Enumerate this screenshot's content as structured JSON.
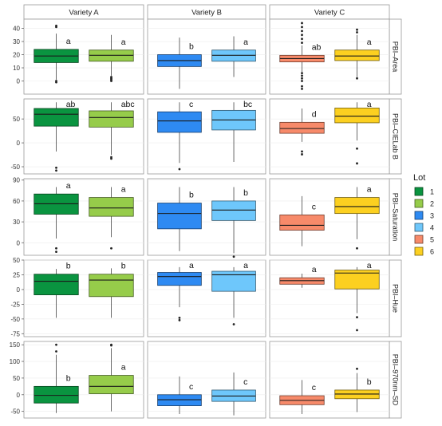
{
  "chart_data": {
    "type": "box",
    "facet_columns": [
      "Variety A",
      "Variety B",
      "Variety C"
    ],
    "legend": {
      "title": "Lot",
      "position": "right",
      "entries": [
        {
          "label": "1",
          "color": "#0a9440"
        },
        {
          "label": "2",
          "color": "#96cc4a"
        },
        {
          "label": "3",
          "color": "#2e8af2"
        },
        {
          "label": "4",
          "color": "#6ec7fb"
        },
        {
          "label": "5",
          "color": "#f78a6a"
        },
        {
          "label": "6",
          "color": "#fcd020"
        }
      ]
    },
    "panels": [
      {
        "row_label": "PBI–Area",
        "ylim": [
          -10,
          47
        ],
        "ticks": [
          0,
          10,
          20,
          30,
          40
        ],
        "tick_labels": [
          "0",
          "10",
          "20",
          "30",
          "40"
        ],
        "cells": [
          [
            {
              "lot": "1",
              "q1": 14,
              "median": 19,
              "q3": 24,
              "lower": 1,
              "upper": 36,
              "outliers": [
                42,
                41,
                0,
                -1
              ],
              "letter": "a"
            },
            {
              "lot": "2",
              "q1": 15,
              "median": 19.5,
              "q3": 23.5,
              "lower": 4,
              "upper": 35,
              "outliers": [
                3,
                2,
                1,
                0
              ],
              "letter": "a"
            }
          ],
          [
            {
              "lot": "3",
              "q1": 11,
              "median": 15.5,
              "q3": 20,
              "lower": -6,
              "upper": 33,
              "outliers": [],
              "letter": "b"
            },
            {
              "lot": "4",
              "q1": 15,
              "median": 19.5,
              "q3": 23.5,
              "lower": 3,
              "upper": 34,
              "outliers": [],
              "letter": "a"
            }
          ],
          [
            {
              "lot": "5",
              "q1": 14.5,
              "median": 17,
              "q3": 19.5,
              "lower": 7,
              "upper": 27,
              "outliers": [
                44,
                41,
                38,
                35,
                32,
                29,
                6,
                4,
                2,
                0,
                -4,
                -6
              ],
              "letter": "ab"
            },
            {
              "lot": "6",
              "q1": 15.5,
              "median": 19,
              "q3": 23.5,
              "lower": 3,
              "upper": 35,
              "outliers": [
                39,
                37,
                2
              ],
              "letter": "a"
            }
          ]
        ]
      },
      {
        "row_label": "PBI–CIELab B",
        "ylim": [
          -65,
          92
        ],
        "ticks": [
          -50,
          0,
          50
        ],
        "tick_labels": [
          "-50",
          "0",
          "50"
        ],
        "cells": [
          [
            {
              "lot": "1",
              "q1": 35,
              "median": 60,
              "q3": 72,
              "lower": -18,
              "upper": 85,
              "outliers": [
                -52,
                -58
              ],
              "letter": "ab"
            },
            {
              "lot": "2",
              "q1": 33,
              "median": 53,
              "q3": 67,
              "lower": -25,
              "upper": 85,
              "outliers": [
                -30,
                -33
              ],
              "letter": "abc"
            }
          ],
          [
            {
              "lot": "3",
              "q1": 22,
              "median": 46,
              "q3": 65,
              "lower": -42,
              "upper": 85,
              "outliers": [
                -55
              ],
              "letter": "c"
            },
            {
              "lot": "4",
              "q1": 27,
              "median": 48,
              "q3": 68,
              "lower": -40,
              "upper": 85,
              "outliers": [],
              "letter": "bc"
            }
          ],
          [
            {
              "lot": "5",
              "q1": 20,
              "median": 30,
              "q3": 43,
              "lower": 2,
              "upper": 72,
              "outliers": [
                -18,
                -24
              ],
              "letter": "d"
            },
            {
              "lot": "6",
              "q1": 42,
              "median": 56,
              "q3": 73,
              "lower": 5,
              "upper": 85,
              "outliers": [
                -12,
                -43
              ],
              "letter": "a"
            }
          ]
        ]
      },
      {
        "row_label": "PBI–Saturation",
        "ylim": [
          -18,
          92
        ],
        "ticks": [
          0,
          30,
          60,
          90
        ],
        "tick_labels": [
          "0",
          "30",
          "60",
          "90"
        ],
        "cells": [
          [
            {
              "lot": "1",
              "q1": 41,
              "median": 56,
              "q3": 70,
              "lower": 6,
              "upper": 80,
              "outliers": [
                -8,
                -13
              ],
              "letter": "a"
            },
            {
              "lot": "2",
              "q1": 38,
              "median": 50,
              "q3": 65,
              "lower": 8,
              "upper": 80,
              "outliers": [
                -8
              ],
              "letter": "a"
            }
          ],
          [
            {
              "lot": "3",
              "q1": 20,
              "median": 42,
              "q3": 57,
              "lower": -12,
              "upper": 80,
              "outliers": [],
              "letter": "b"
            },
            {
              "lot": "4",
              "q1": 32,
              "median": 47,
              "q3": 60,
              "lower": -15,
              "upper": 80,
              "outliers": [
                -20,
                -26
              ],
              "letter": "b"
            }
          ],
          [
            {
              "lot": "5",
              "q1": 18,
              "median": 25,
              "q3": 40,
              "lower": -5,
              "upper": 67,
              "outliers": [
                -30
              ],
              "letter": "c"
            },
            {
              "lot": "6",
              "q1": 42,
              "median": 52,
              "q3": 65,
              "lower": 5,
              "upper": 80,
              "outliers": [
                -8
              ],
              "letter": "a"
            }
          ]
        ]
      },
      {
        "row_label": "PBI–Hue",
        "ylim": [
          -80,
          50
        ],
        "ticks": [
          -75,
          -50,
          -25,
          0,
          25,
          50
        ],
        "tick_labels": [
          "-75",
          "-50",
          "-25",
          "0",
          "25",
          "50"
        ],
        "cells": [
          [
            {
              "lot": "1",
              "q1": -9,
              "median": 14,
              "q3": 26,
              "lower": -48,
              "upper": 35,
              "outliers": [],
              "letter": "b"
            },
            {
              "lot": "2",
              "q1": -12,
              "median": 16,
              "q3": 26,
              "lower": -48,
              "upper": 36,
              "outliers": [],
              "letter": "b"
            }
          ],
          [
            {
              "lot": "3",
              "q1": 7,
              "median": 22,
              "q3": 29,
              "lower": -30,
              "upper": 38,
              "outliers": [
                -48,
                -52
              ],
              "letter": "a"
            },
            {
              "lot": "4",
              "q1": -3,
              "median": 25,
              "q3": 31,
              "lower": -48,
              "upper": 38,
              "outliers": [
                -59
              ],
              "letter": "a"
            }
          ],
          [
            {
              "lot": "5",
              "q1": 9,
              "median": 15,
              "q3": 20,
              "lower": 3,
              "upper": 27,
              "outliers": [],
              "letter": "a"
            },
            {
              "lot": "6",
              "q1": 1,
              "median": 28,
              "q3": 33,
              "lower": -40,
              "upper": 38,
              "outliers": [
                -47,
                -69
              ],
              "letter": "a"
            }
          ]
        ]
      },
      {
        "row_label": "PBI–970nm–SD",
        "ylim": [
          -70,
          160
        ],
        "ticks": [
          -50,
          0,
          50,
          100,
          150
        ],
        "tick_labels": [
          "-50",
          "0",
          "50",
          "100",
          "150"
        ],
        "cells": [
          [
            {
              "lot": "1",
              "q1": -25,
              "median": -2,
              "q3": 25,
              "lower": -55,
              "upper": 120,
              "outliers": [
                130,
                150
              ],
              "letter": "b"
            },
            {
              "lot": "2",
              "q1": 3,
              "median": 25,
              "q3": 58,
              "lower": -50,
              "upper": 140,
              "outliers": [
                150,
                148
              ],
              "letter": "a"
            }
          ],
          [
            {
              "lot": "3",
              "q1": -33,
              "median": -15,
              "q3": 0,
              "lower": -58,
              "upper": 55,
              "outliers": [],
              "letter": "c"
            },
            {
              "lot": "4",
              "q1": -20,
              "median": -4,
              "q3": 14,
              "lower": -62,
              "upper": 67,
              "outliers": [],
              "letter": "c"
            }
          ],
          [
            {
              "lot": "5",
              "q1": -30,
              "median": -17,
              "q3": -3,
              "lower": -58,
              "upper": 44,
              "outliers": [],
              "letter": "c"
            },
            {
              "lot": "6",
              "q1": -12,
              "median": 2,
              "q3": 14,
              "lower": -52,
              "upper": 65,
              "outliers": [
                78
              ],
              "letter": "b"
            }
          ]
        ]
      }
    ]
  }
}
